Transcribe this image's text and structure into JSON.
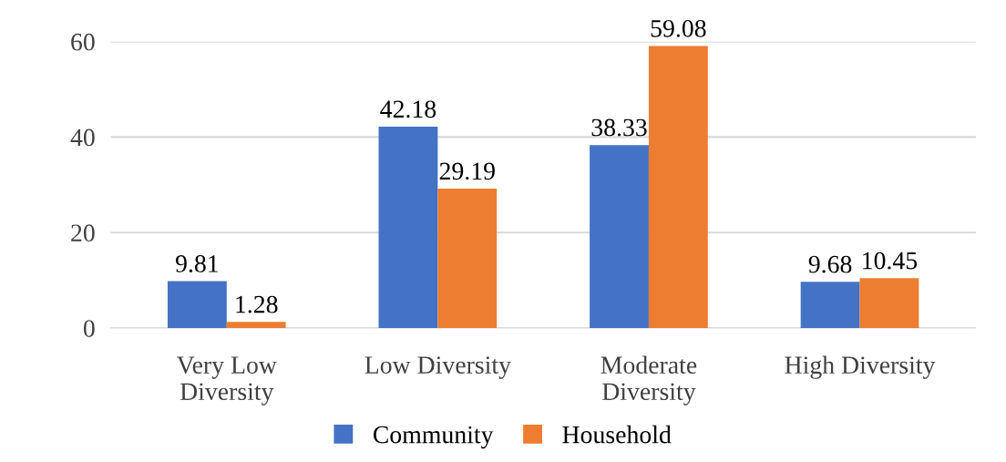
{
  "chart_data": {
    "type": "bar",
    "categories": [
      "Very Low\nDiversity",
      "Low Diversity",
      "Moderate\nDiversity",
      "High Diversity"
    ],
    "series": [
      {
        "name": "Community",
        "color": "#4472c4",
        "values": [
          9.81,
          42.18,
          38.33,
          9.68
        ]
      },
      {
        "name": "Household",
        "color": "#ed7d31",
        "values": [
          1.28,
          29.19,
          59.08,
          10.45
        ]
      }
    ],
    "ylim": [
      0,
      60
    ],
    "yticks": [
      0,
      20,
      40,
      60
    ],
    "grid": "y",
    "legend": "bottom",
    "data_labels": true
  }
}
